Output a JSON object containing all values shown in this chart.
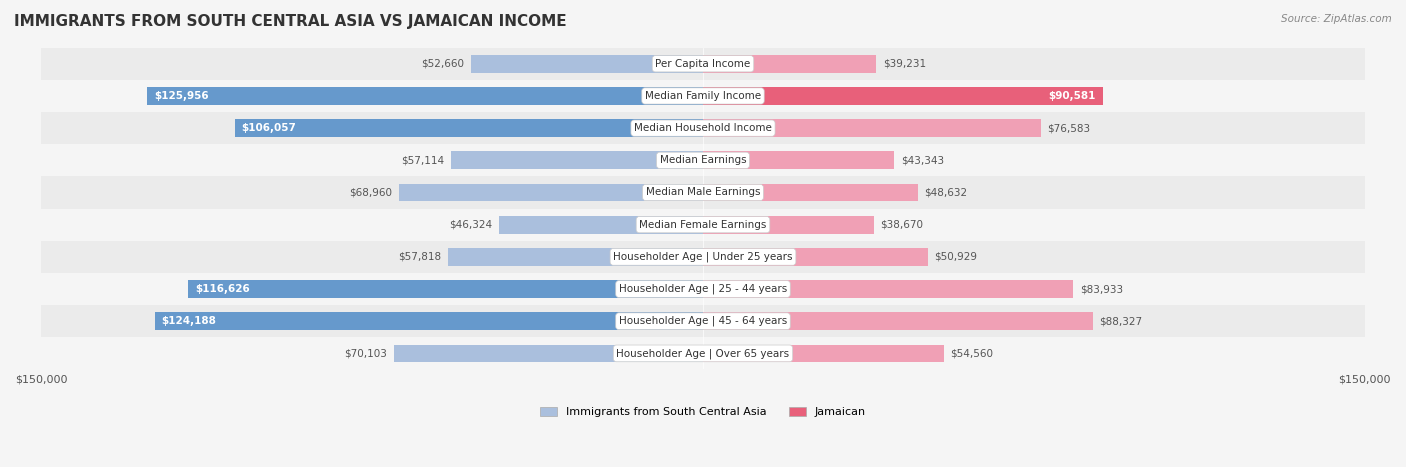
{
  "title": "IMMIGRANTS FROM SOUTH CENTRAL ASIA VS JAMAICAN INCOME",
  "source": "Source: ZipAtlas.com",
  "categories": [
    "Per Capita Income",
    "Median Family Income",
    "Median Household Income",
    "Median Earnings",
    "Median Male Earnings",
    "Median Female Earnings",
    "Householder Age | Under 25 years",
    "Householder Age | 25 - 44 years",
    "Householder Age | 45 - 64 years",
    "Householder Age | Over 65 years"
  ],
  "left_values": [
    52660,
    125956,
    106057,
    57114,
    68960,
    46324,
    57818,
    116626,
    124188,
    70103
  ],
  "right_values": [
    39231,
    90581,
    76583,
    43343,
    48632,
    38670,
    50929,
    83933,
    88327,
    54560
  ],
  "left_labels": [
    "$52,660",
    "$125,956",
    "$106,057",
    "$57,114",
    "$68,960",
    "$46,324",
    "$57,818",
    "$116,626",
    "$124,188",
    "$70,103"
  ],
  "right_labels": [
    "$39,231",
    "$90,581",
    "$76,583",
    "$43,343",
    "$48,632",
    "$38,670",
    "$50,929",
    "$83,933",
    "$88,327",
    "$54,560"
  ],
  "left_color_high": "#6699cc",
  "left_color_low": "#aabfdd",
  "right_color_high": "#e8607a",
  "right_color_low": "#f0a0b5",
  "threshold": 90000,
  "max_value": 150000,
  "xlabel_left": "$150,000",
  "xlabel_right": "$150,000",
  "legend_left": "Immigrants from South Central Asia",
  "legend_right": "Jamaican",
  "background_color": "#f5f5f5",
  "row_bg_odd": "#ebebeb",
  "row_bg_even": "#f5f5f5",
  "bar_height": 0.55
}
